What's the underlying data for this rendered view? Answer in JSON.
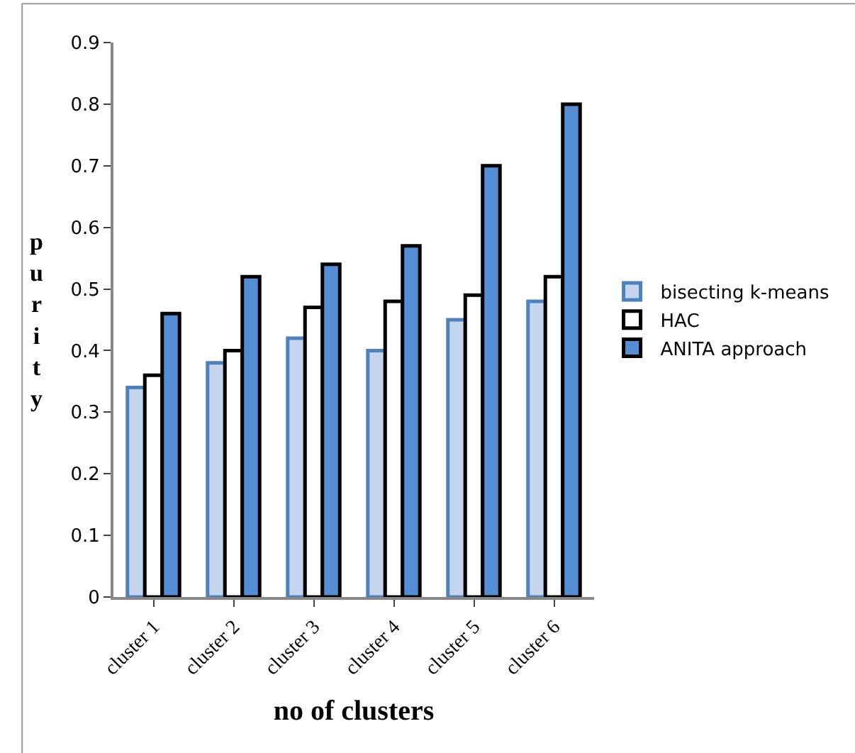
{
  "chart_data": {
    "type": "bar",
    "xlabel": "no of clusters",
    "ylabel": "purity",
    "categories": [
      "cluster 1",
      "cluster 2",
      "cluster 3",
      "cluster 4",
      "cluster 5",
      "cluster 6"
    ],
    "series": [
      {
        "name": "bisecting k-means",
        "color": "#c5d5ee",
        "values": [
          0.34,
          0.38,
          0.42,
          0.4,
          0.45,
          0.48
        ]
      },
      {
        "name": "HAC",
        "color": "#ffffff",
        "values": [
          0.36,
          0.4,
          0.47,
          0.48,
          0.49,
          0.52
        ]
      },
      {
        "name": "ANITA approach",
        "color": "#558ed5",
        "values": [
          0.46,
          0.52,
          0.54,
          0.57,
          0.7,
          0.8
        ]
      }
    ],
    "ylim": [
      0,
      0.9
    ],
    "yticks": [
      0,
      0.1,
      0.2,
      0.3,
      0.4,
      0.5,
      0.6,
      0.7,
      0.8,
      0.9
    ],
    "grid": false,
    "legend": "right"
  }
}
